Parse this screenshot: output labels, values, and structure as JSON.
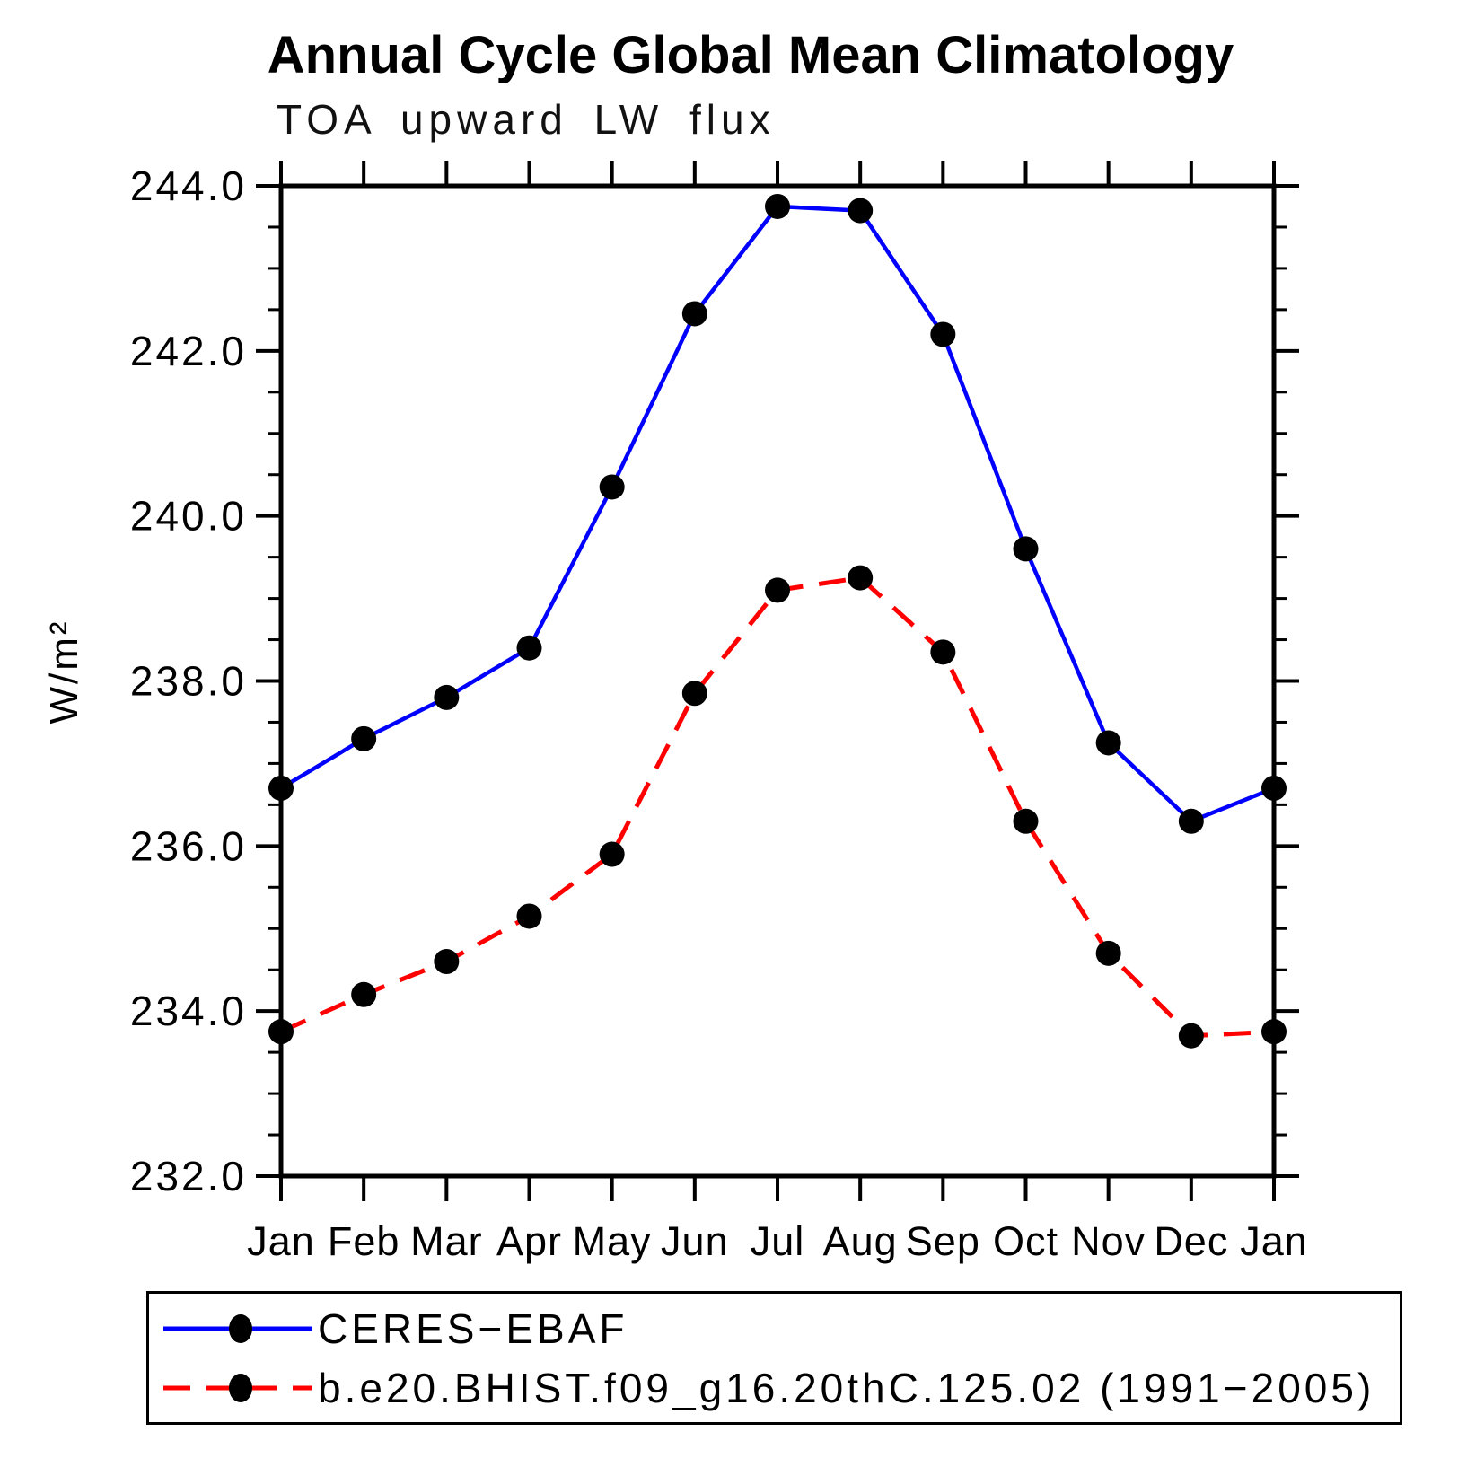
{
  "chart_data": {
    "type": "line",
    "title": "Annual Cycle Global Mean Climatology",
    "subtitle": "TOA upward LW flux",
    "ylabel": "W/m²",
    "xlabel": "",
    "categories": [
      "Jan",
      "Feb",
      "Mar",
      "Apr",
      "May",
      "Jun",
      "Jul",
      "Aug",
      "Sep",
      "Oct",
      "Nov",
      "Dec",
      "Jan"
    ],
    "ylim": [
      232.0,
      244.0
    ],
    "ytick_major_step": 2.0,
    "ytick_minor_step": 0.5,
    "ytick_label_format": "one-decimal",
    "grid": "off",
    "legend_position": "bottom-left-box",
    "series": [
      {
        "name": "CERES−EBAF",
        "color": "#0000ff",
        "line_style": "solid",
        "marker": "filled-circle",
        "marker_color": "#000000",
        "values": [
          236.7,
          237.3,
          237.8,
          238.4,
          240.35,
          242.45,
          243.75,
          243.7,
          242.2,
          239.6,
          237.25,
          236.3,
          236.7
        ]
      },
      {
        "name": "b.e20.BHIST.f09_g16.20thC.125.02 (1991−2005)",
        "color": "#ff0000",
        "line_style": "dashed",
        "marker": "filled-circle",
        "marker_color": "#000000",
        "values": [
          233.75,
          234.2,
          234.6,
          235.15,
          235.9,
          237.85,
          239.1,
          239.25,
          238.35,
          236.3,
          234.7,
          233.7,
          233.75
        ]
      }
    ]
  }
}
